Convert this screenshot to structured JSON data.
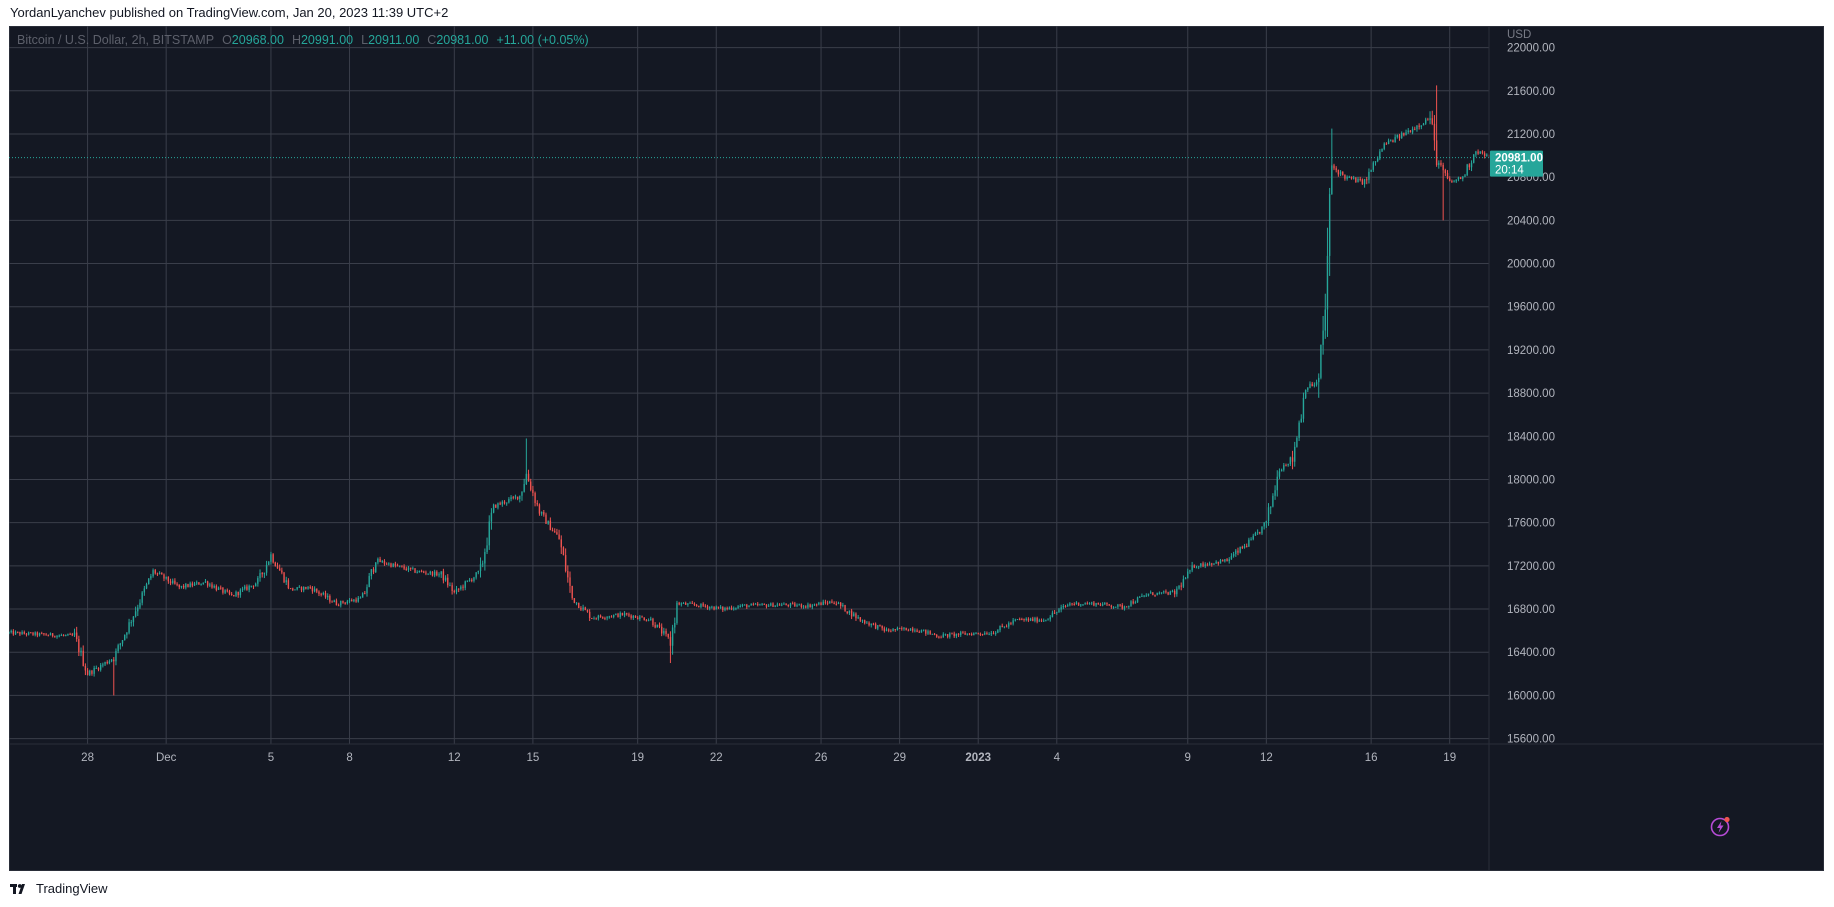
{
  "attribution": "YordanLyanchev published on TradingView.com, Jan 20, 2023 11:39 UTC+2",
  "legend": {
    "symbol": "Bitcoin / U.S. Dollar, 2h, BITSTAMP",
    "o_label": "O",
    "o_value": "20968.00",
    "h_label": "H",
    "h_value": "20991.00",
    "l_label": "L",
    "l_value": "20911.00",
    "c_label": "C",
    "c_value": "20981.00",
    "change": "+11.00 (+0.05%)"
  },
  "footer": {
    "brand": "TradingView"
  },
  "colors": {
    "background": "#141823",
    "grid": "#3a3e4a",
    "up": "#26a69a",
    "down": "#ef5350",
    "axis_text": "#b2b5be",
    "price_tag_bg": "#26a69a",
    "lightning": "#b64bd6"
  },
  "icons": {
    "logo": "tradingview-logo-icon",
    "lightning": "lightning-bolt-icon"
  },
  "chart_data": {
    "type": "candlestick",
    "symbol": "Bitcoin / U.S. Dollar",
    "interval": "2h",
    "exchange": "BITSTAMP",
    "currency": "USD",
    "ylim": [
      15550,
      22200
    ],
    "y_ticks": [
      15600,
      16000,
      16400,
      16800,
      17200,
      17600,
      18000,
      18400,
      18800,
      19200,
      19600,
      20000,
      20400,
      20800,
      21200,
      21600,
      22000
    ],
    "y_tick_labels": [
      "15600.00",
      "16000.00",
      "16400.00",
      "16800.00",
      "17200.00",
      "17600.00",
      "18000.00",
      "18400.00",
      "18800.00",
      "19200.00",
      "19600.00",
      "20000.00",
      "20400.00",
      "20800.00",
      "21200.00",
      "21600.00",
      "22000.00"
    ],
    "x_range": [
      "2022-11-25T00:00",
      "2023-01-20T12:00"
    ],
    "x_ticks": [
      {
        "date": "2022-11-28",
        "label": "28"
      },
      {
        "date": "2022-12-01",
        "label": "Dec"
      },
      {
        "date": "2022-12-05",
        "label": "5"
      },
      {
        "date": "2022-12-08",
        "label": "8"
      },
      {
        "date": "2022-12-12",
        "label": "12"
      },
      {
        "date": "2022-12-15",
        "label": "15"
      },
      {
        "date": "2022-12-19",
        "label": "19"
      },
      {
        "date": "2022-12-22",
        "label": "22"
      },
      {
        "date": "2022-12-26",
        "label": "26"
      },
      {
        "date": "2022-12-29",
        "label": "29"
      },
      {
        "date": "2023-01-01",
        "label": "2023"
      },
      {
        "date": "2023-01-04",
        "label": "4"
      },
      {
        "date": "2023-01-09",
        "label": "9"
      },
      {
        "date": "2023-01-12",
        "label": "12"
      },
      {
        "date": "2023-01-16",
        "label": "16"
      },
      {
        "date": "2023-01-19",
        "label": "19"
      }
    ],
    "last_price": 20981.0,
    "last_price_label": "20981.00",
    "countdown_label": "20:14",
    "grid": true,
    "close_path": [
      {
        "date": "2022-11-25T00:00",
        "close": 16580
      },
      {
        "date": "2022-11-26T12:00",
        "close": 16560
      },
      {
        "date": "2022-11-27T12:00",
        "close": 16550
      },
      {
        "date": "2022-11-28T00:00",
        "close": 16200
      },
      {
        "date": "2022-11-29T00:00",
        "close": 16350
      },
      {
        "date": "2022-11-30T00:00",
        "close": 16880
      },
      {
        "date": "2022-11-30T12:00",
        "close": 17150
      },
      {
        "date": "2022-12-01T12:00",
        "close": 17000
      },
      {
        "date": "2022-12-02T12:00",
        "close": 17050
      },
      {
        "date": "2022-12-03T12:00",
        "close": 16920
      },
      {
        "date": "2022-12-04T12:00",
        "close": 17050
      },
      {
        "date": "2022-12-05T00:00",
        "close": 17300
      },
      {
        "date": "2022-12-05T18:00",
        "close": 16980
      },
      {
        "date": "2022-12-06T12:00",
        "close": 17000
      },
      {
        "date": "2022-12-07T12:00",
        "close": 16850
      },
      {
        "date": "2022-12-08T12:00",
        "close": 16900
      },
      {
        "date": "2022-12-09T00:00",
        "close": 17250
      },
      {
        "date": "2022-12-10T12:00",
        "close": 17150
      },
      {
        "date": "2022-12-11T12:00",
        "close": 17120
      },
      {
        "date": "2022-12-12T00:00",
        "close": 16950
      },
      {
        "date": "2022-12-13T00:00",
        "close": 17150
      },
      {
        "date": "2022-12-13T12:00",
        "close": 17750
      },
      {
        "date": "2022-12-14T12:00",
        "close": 17850
      },
      {
        "date": "2022-12-14T18:00",
        "close": 18050
      },
      {
        "date": "2022-12-15T06:00",
        "close": 17700
      },
      {
        "date": "2022-12-16T00:00",
        "close": 17450
      },
      {
        "date": "2022-12-16T12:00",
        "close": 16900
      },
      {
        "date": "2022-12-17T06:00",
        "close": 16720
      },
      {
        "date": "2022-12-18T12:00",
        "close": 16750
      },
      {
        "date": "2022-12-19T12:00",
        "close": 16700
      },
      {
        "date": "2022-12-20T06:00",
        "close": 16500
      },
      {
        "date": "2022-12-20T12:00",
        "close": 16850
      },
      {
        "date": "2022-12-21T12:00",
        "close": 16830
      },
      {
        "date": "2022-12-22T06:00",
        "close": 16800
      },
      {
        "date": "2022-12-23T00:00",
        "close": 16830
      },
      {
        "date": "2022-12-24T12:00",
        "close": 16840
      },
      {
        "date": "2022-12-25T12:00",
        "close": 16830
      },
      {
        "date": "2022-12-26T12:00",
        "close": 16870
      },
      {
        "date": "2022-12-27T12:00",
        "close": 16700
      },
      {
        "date": "2022-12-28T12:00",
        "close": 16600
      },
      {
        "date": "2022-12-29T12:00",
        "close": 16620
      },
      {
        "date": "2022-12-30T12:00",
        "close": 16550
      },
      {
        "date": "2022-12-31T12:00",
        "close": 16570
      },
      {
        "date": "2023-01-01T12:00",
        "close": 16580
      },
      {
        "date": "2023-01-02T12:00",
        "close": 16700
      },
      {
        "date": "2023-01-03T12:00",
        "close": 16700
      },
      {
        "date": "2023-01-04T12:00",
        "close": 16850
      },
      {
        "date": "2023-01-05T12:00",
        "close": 16850
      },
      {
        "date": "2023-01-06T12:00",
        "close": 16820
      },
      {
        "date": "2023-01-07T12:00",
        "close": 16940
      },
      {
        "date": "2023-01-08T12:00",
        "close": 16950
      },
      {
        "date": "2023-01-09T06:00",
        "close": 17200
      },
      {
        "date": "2023-01-10T12:00",
        "close": 17250
      },
      {
        "date": "2023-01-11T12:00",
        "close": 17450
      },
      {
        "date": "2023-01-12T00:00",
        "close": 17600
      },
      {
        "date": "2023-01-12T12:00",
        "close": 18100
      },
      {
        "date": "2023-01-13T00:00",
        "close": 18200
      },
      {
        "date": "2023-01-13T12:00",
        "close": 18850
      },
      {
        "date": "2023-01-14T00:00",
        "close": 18900
      },
      {
        "date": "2023-01-14T06:00",
        "close": 19600
      },
      {
        "date": "2023-01-14T12:00",
        "close": 20900
      },
      {
        "date": "2023-01-15T00:00",
        "close": 20800
      },
      {
        "date": "2023-01-15T18:00",
        "close": 20750
      },
      {
        "date": "2023-01-16T12:00",
        "close": 21100
      },
      {
        "date": "2023-01-17T06:00",
        "close": 21200
      },
      {
        "date": "2023-01-18T06:00",
        "close": 21350
      },
      {
        "date": "2023-01-18T12:00",
        "close": 20950
      },
      {
        "date": "2023-01-19T00:00",
        "close": 20750
      },
      {
        "date": "2023-01-19T12:00",
        "close": 20800
      },
      {
        "date": "2023-01-20T00:00",
        "close": 21050
      },
      {
        "date": "2023-01-20T12:00",
        "close": 20981
      }
    ],
    "notable_wicks": [
      {
        "date": "2022-12-14T18:00",
        "high": 18380
      },
      {
        "date": "2022-12-20T06:00",
        "low": 16300
      },
      {
        "date": "2022-11-29T00:00",
        "low": 16000
      },
      {
        "date": "2023-01-14T12:00",
        "high": 21250
      },
      {
        "date": "2023-01-18T12:00",
        "high": 21650
      },
      {
        "date": "2023-01-18T18:00",
        "low": 20400
      }
    ]
  }
}
